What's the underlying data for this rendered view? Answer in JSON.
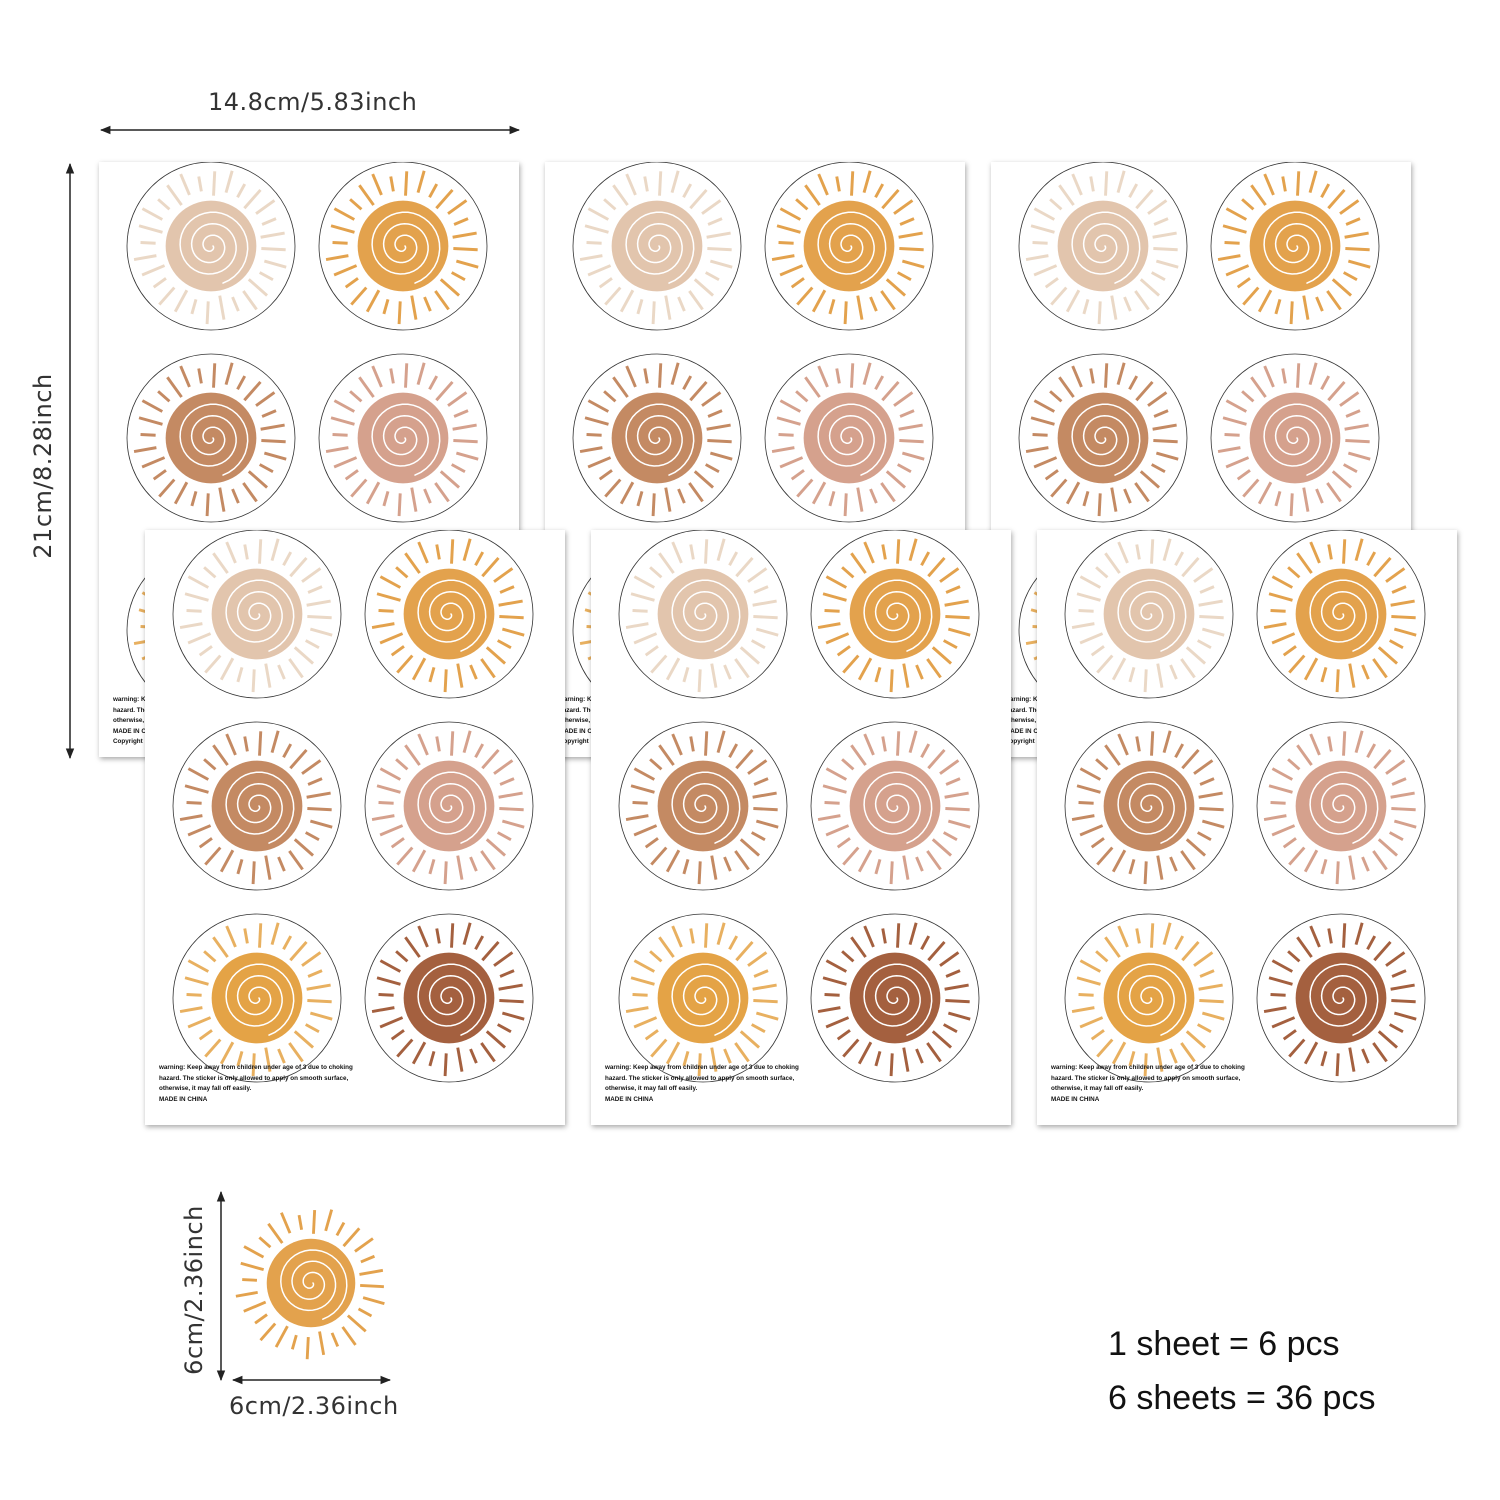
{
  "dimensions": {
    "sheet_width": "14.8cm/5.83inch",
    "sheet_height": "21cm/8.28inch",
    "sticker_height": "6cm/2.36inch",
    "sticker_width": "6cm/2.36inch"
  },
  "sheet_text": {
    "warning_line1": "warning: Keep away from children under age of 3 due to choking",
    "warning_line2": "hazard. The sticker is only allowed to apply on smooth surface,",
    "warning_line3": "otherwise, it may fall off easily.",
    "made_in": "MADE IN CHINA",
    "copyright": "Copyright"
  },
  "summary": {
    "line1": "1 sheet = 6 pcs",
    "line2": "6 sheets = 36 pcs"
  },
  "sticker_colors": [
    "#e2c5ad",
    "#e3a24d",
    "#c48a63",
    "#d5a18d",
    "#e4a346",
    "#a4603f"
  ],
  "ray_colors": [
    "#ead8c6",
    "#e3a24d",
    "#c48a63",
    "#d5a18d",
    "#e8b060",
    "#a4603f"
  ],
  "sample_sticker": {
    "color": "#e3a24d",
    "icon": "sun-sticker-icon"
  }
}
